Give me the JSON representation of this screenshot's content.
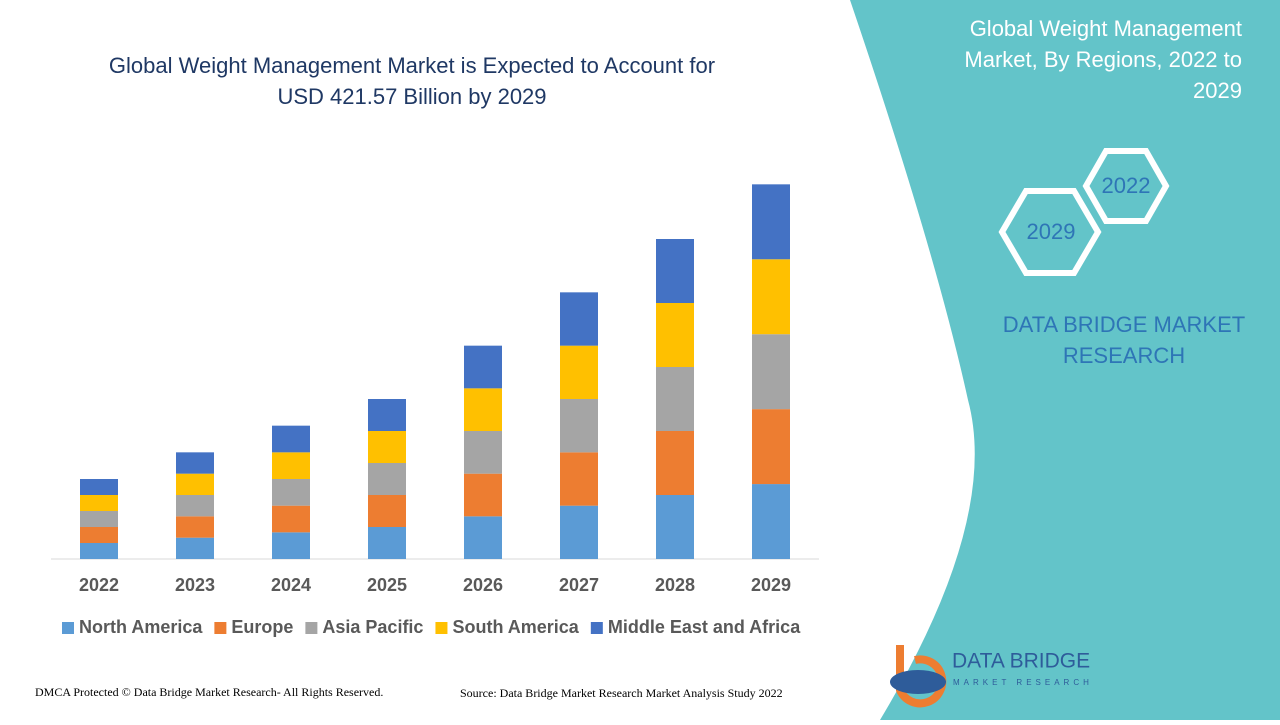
{
  "chart_data": {
    "type": "stacked_bar",
    "title": [
      "Global Weight Management Market is Expected to Account for",
      "USD 421.57 Billion by 2029"
    ],
    "categories": [
      "2022",
      "2023",
      "2024",
      "2025",
      "2026",
      "2027",
      "2028",
      "2029"
    ],
    "series": [
      {
        "name": "North America",
        "color": "#5b9bd5",
        "values": [
          18,
          24,
          30,
          36,
          48,
          60,
          72,
          84.3
        ]
      },
      {
        "name": "Europe",
        "color": "#ed7d31",
        "values": [
          18,
          24,
          30,
          36,
          48,
          60,
          72,
          84.3
        ]
      },
      {
        "name": "Asia Pacific",
        "color": "#a5a5a5",
        "values": [
          18,
          24,
          30,
          36,
          48,
          60,
          72,
          84.3
        ]
      },
      {
        "name": "South America",
        "color": "#ffc000",
        "values": [
          18,
          24,
          30,
          36,
          48,
          60,
          72,
          84.3
        ]
      },
      {
        "name": "Middle East and Africa",
        "color": "#4472c4",
        "values": [
          18,
          24,
          30,
          36,
          48,
          60,
          72,
          84.3
        ]
      }
    ],
    "ylim": [
      0,
      450
    ],
    "legend": "bottom"
  },
  "footer": {
    "copyright": "DMCA Protected © Data Bridge Market Research- All Rights Reserved.",
    "source": "Source: Data Bridge Market Research Market Analysis Study 2022"
  },
  "panel": {
    "title": [
      "Global Weight Management",
      "Market, By Regions, 2022 to",
      "2029"
    ],
    "hex_start": "2022",
    "hex_end": "2029",
    "brand": [
      "DATA BRIDGE MARKET",
      "RESEARCH"
    ],
    "logo_name": "DATA BRIDGE",
    "logo_tagline": "MARKET RESEARCH"
  }
}
